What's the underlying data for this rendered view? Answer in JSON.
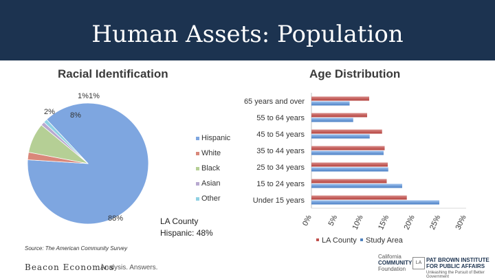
{
  "slide": {
    "title": "Human Assets: Population",
    "note_line1": "LA County",
    "note_line2": "Hispanic: 48%",
    "source": "Source: The American Community Survey",
    "logo_beacon": "Beacon Economics",
    "logo_tagline": "Analysis. Answers.",
    "logo_cc_line1": "California",
    "logo_cc_line2": "COMMUNITY",
    "logo_cc_line3": "Foundation",
    "logo_cc_mark": "LA",
    "logo_pb_line1": "PAT BROWN INSTITUTE",
    "logo_pb_line2": "FOR PUBLIC AFFAIRS",
    "logo_pb_sub": "Unleashing the Pursuit of Better Government"
  },
  "chart_data": [
    {
      "type": "pie",
      "title": "Racial Identification",
      "categories": [
        "Hispanic",
        "White",
        "Black",
        "Asian",
        "Other"
      ],
      "values": [
        88,
        2,
        8,
        1,
        1
      ],
      "data_labels": [
        "88%",
        "2%",
        "8%",
        "1%",
        "1%"
      ],
      "colors": [
        "#7ea6e0",
        "#d9887a",
        "#b5cf95",
        "#b8a9d0",
        "#8fd1e3"
      ],
      "legend_position": "right"
    },
    {
      "type": "bar",
      "orientation": "horizontal",
      "title": "Age Distribution",
      "categories": [
        "65 years and over",
        "55 to 64 years",
        "45 to 54 years",
        "35 to 44 years",
        "25 to 34 years",
        "15 to 24 years",
        "Under 15 years"
      ],
      "series": [
        {
          "name": "LA County",
          "values": [
            11.2,
            10.8,
            13.7,
            14.2,
            14.8,
            14.6,
            18.5
          ],
          "color": "#c0504d"
        },
        {
          "name": "Study Area",
          "values": [
            7.4,
            8.1,
            11.3,
            14.0,
            14.9,
            17.6,
            24.8
          ],
          "color": "#4f81bd"
        }
      ],
      "xlim": [
        0,
        30
      ],
      "x_ticks": [
        "0%",
        "5%",
        "10%",
        "15%",
        "20%",
        "25%",
        "30%"
      ],
      "legend_position": "bottom"
    }
  ]
}
